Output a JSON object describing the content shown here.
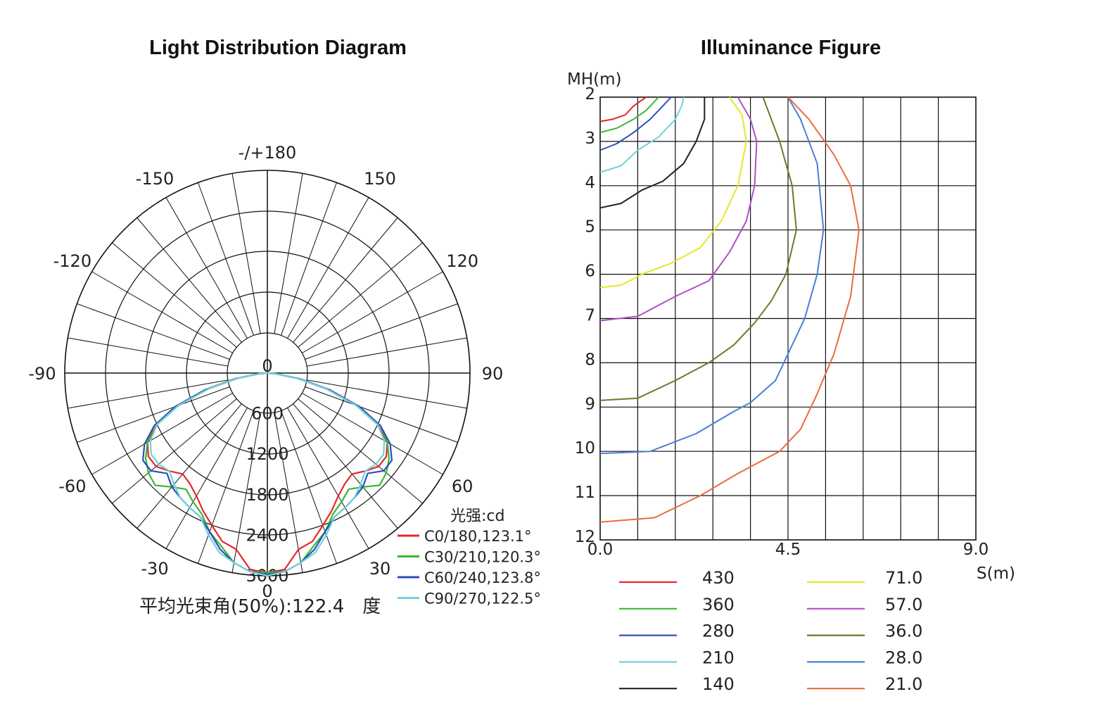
{
  "chart_data": [
    {
      "type": "polar",
      "title": "Light Distribution Diagram",
      "angle_labels": [
        {
          "angle": 180,
          "text": "-/+180"
        },
        {
          "angle": 150,
          "text": "150"
        },
        {
          "angle": -150,
          "text": "-150"
        },
        {
          "angle": 120,
          "text": "120"
        },
        {
          "angle": -120,
          "text": "-120"
        },
        {
          "angle": 90,
          "text": "90"
        },
        {
          "angle": -90,
          "text": "-90"
        },
        {
          "angle": 60,
          "text": "60"
        },
        {
          "angle": -60,
          "text": "-60"
        },
        {
          "angle": 30,
          "text": "30"
        },
        {
          "angle": -30,
          "text": "-30"
        },
        {
          "angle": 0,
          "text": "0"
        }
      ],
      "radial_ticks": [
        "0",
        "600",
        "1200",
        "1800",
        "2400",
        "3000"
      ],
      "radial_max": 3000,
      "unit_label": "光强:cd",
      "footer": "平均光束角(50%):122.4　度",
      "series": [
        {
          "name": "C0/180,123.1°",
          "color": "#e8262c",
          "angles": [
            0,
            5,
            10,
            15,
            20,
            25,
            30,
            35,
            40,
            45,
            50,
            55,
            60,
            65,
            70,
            75,
            80,
            85,
            90
          ],
          "values": [
            2950,
            2920,
            2650,
            2580,
            2400,
            2250,
            2100,
            2000,
            1950,
            2050,
            2150,
            2150,
            2050,
            1800,
            1400,
            900,
            450,
            120,
            0
          ]
        },
        {
          "name": "C30/210,120.3°",
          "color": "#3db534",
          "angles": [
            0,
            5,
            10,
            15,
            20,
            25,
            30,
            35,
            40,
            45,
            50,
            55,
            60,
            65,
            70,
            75,
            80,
            85,
            90
          ],
          "values": [
            2950,
            2950,
            2850,
            2650,
            2500,
            2300,
            2200,
            2100,
            2200,
            2350,
            2300,
            2200,
            2050,
            1850,
            1450,
            950,
            480,
            130,
            0
          ]
        },
        {
          "name": "C60/240,123.8°",
          "color": "#2d4fb8",
          "angles": [
            0,
            5,
            10,
            15,
            20,
            25,
            30,
            35,
            40,
            45,
            50,
            55,
            60,
            65,
            70,
            75,
            80,
            85,
            90
          ],
          "values": [
            2980,
            2950,
            2850,
            2700,
            2500,
            2350,
            2300,
            2250,
            2200,
            2100,
            2250,
            2250,
            2100,
            1850,
            1450,
            950,
            480,
            130,
            0
          ]
        },
        {
          "name": "C90/270,122.5°",
          "color": "#6fd3d9",
          "angles": [
            0,
            5,
            10,
            15,
            20,
            25,
            30,
            35,
            40,
            45,
            50,
            55,
            60,
            65,
            70,
            75,
            80,
            85,
            90
          ],
          "values": [
            3000,
            2950,
            2850,
            2750,
            2550,
            2350,
            2300,
            2250,
            2150,
            2050,
            2100,
            2100,
            2000,
            1800,
            1400,
            900,
            450,
            120,
            0
          ]
        }
      ]
    },
    {
      "type": "line",
      "title": "Illuminance Figure",
      "ylabel": "MH(m)",
      "xlabel": "S(m)",
      "y_ticks": [
        "2",
        "3",
        "4",
        "5",
        "6",
        "7",
        "8",
        "9",
        "10",
        "11",
        "12"
      ],
      "x_ticks": [
        "0.0",
        "4.5",
        "9.0"
      ],
      "xlim": [
        0,
        9.0
      ],
      "ylim": [
        2,
        12
      ],
      "series": [
        {
          "name": "430",
          "color": "#e8262c",
          "x": [
            0,
            0.3,
            0.6,
            0.8,
            1.1
          ],
          "y": [
            2.55,
            2.5,
            2.4,
            2.2,
            2.0
          ]
        },
        {
          "name": "360",
          "color": "#3db534",
          "x": [
            0,
            0.4,
            0.8,
            1.1,
            1.4
          ],
          "y": [
            2.8,
            2.7,
            2.5,
            2.3,
            2.0
          ]
        },
        {
          "name": "280",
          "color": "#2d4fb8",
          "x": [
            0,
            0.4,
            0.8,
            1.2,
            1.5,
            1.7
          ],
          "y": [
            3.2,
            3.05,
            2.8,
            2.5,
            2.2,
            2.0
          ]
        },
        {
          "name": "210",
          "color": "#6fd3d9",
          "x": [
            0,
            0.5,
            0.9,
            1.4,
            1.8,
            1.95,
            2.0
          ],
          "y": [
            3.7,
            3.55,
            3.2,
            2.9,
            2.5,
            2.2,
            2.0
          ]
        },
        {
          "name": "140",
          "color": "#222222",
          "x": [
            0,
            0.5,
            1.0,
            1.5,
            2.0,
            2.3,
            2.5,
            2.5
          ],
          "y": [
            4.5,
            4.4,
            4.1,
            3.9,
            3.5,
            3.0,
            2.5,
            2.0
          ]
        },
        {
          "name": "71.0",
          "color": "#e4e82a",
          "x": [
            0,
            0.5,
            1.0,
            1.7,
            2.4,
            2.9,
            3.3,
            3.5,
            3.4,
            3.1
          ],
          "y": [
            6.3,
            6.25,
            6.0,
            5.75,
            5.4,
            4.8,
            4.0,
            3.0,
            2.4,
            2.0
          ]
        },
        {
          "name": "57.0",
          "color": "#b04fc6",
          "x": [
            0,
            0.9,
            1.8,
            2.6,
            3.1,
            3.5,
            3.7,
            3.75,
            3.6,
            3.3
          ],
          "y": [
            7.05,
            6.95,
            6.5,
            6.15,
            5.5,
            4.8,
            4.0,
            3.0,
            2.5,
            2.0
          ]
        },
        {
          "name": "36.0",
          "color": "#6b7a2b",
          "x": [
            0,
            0.9,
            1.8,
            2.6,
            3.2,
            3.7,
            4.1,
            4.45,
            4.7,
            4.6,
            4.3,
            3.9
          ],
          "y": [
            8.85,
            8.8,
            8.4,
            8.0,
            7.6,
            7.1,
            6.6,
            6.0,
            5.0,
            4.0,
            3.0,
            2.0
          ]
        },
        {
          "name": "28.0",
          "color": "#4a7fd4",
          "x": [
            0,
            1.2,
            2.3,
            3.2,
            3.6,
            4.2,
            4.6,
            4.9,
            5.2,
            5.35,
            5.2,
            4.8,
            4.5
          ],
          "y": [
            10.05,
            10.0,
            9.6,
            9.1,
            8.9,
            8.4,
            7.6,
            7.0,
            6.0,
            5.0,
            3.5,
            2.5,
            2.0
          ]
        },
        {
          "name": "21.0",
          "color": "#ec6a41",
          "x": [
            0,
            1.3,
            2.4,
            3.3,
            4.3,
            4.8,
            5.2,
            5.6,
            6.0,
            6.2,
            6.0,
            5.6,
            5.0,
            4.5
          ],
          "y": [
            11.6,
            11.5,
            11.0,
            10.5,
            10.0,
            9.5,
            8.7,
            7.8,
            6.5,
            5.0,
            4.0,
            3.3,
            2.5,
            2.0
          ]
        }
      ]
    }
  ]
}
